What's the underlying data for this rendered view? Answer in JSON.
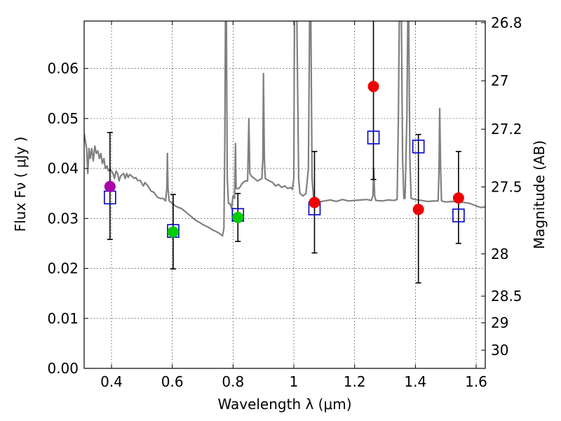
{
  "chart_data": {
    "type": "scatter",
    "title": "",
    "xlabel": "Wavelength  λ (μm)",
    "ylabel": "Flux  Fν  ( μJy )",
    "y2label": "Magnitude (AB)",
    "xlim": [
      0.31,
      1.63
    ],
    "ylim": [
      0.0,
      0.0695
    ],
    "grid": true,
    "colors": {
      "spectrum": "#808080",
      "model": "#0000cc",
      "errorbar": "#000000",
      "frame": "#000000"
    },
    "x_ticks": [
      {
        "value": 0.4,
        "label": "0.4"
      },
      {
        "value": 0.6,
        "label": "0.6"
      },
      {
        "value": 0.8,
        "label": "0.8"
      },
      {
        "value": 1.0,
        "label": "1"
      },
      {
        "value": 1.2,
        "label": "1.2"
      },
      {
        "value": 1.4,
        "label": "1.4"
      },
      {
        "value": 1.6,
        "label": "1.6"
      }
    ],
    "y_ticks": [
      {
        "value": 0.0,
        "label": "0.00"
      },
      {
        "value": 0.01,
        "label": "0.01"
      },
      {
        "value": 0.02,
        "label": "0.02"
      },
      {
        "value": 0.03,
        "label": "0.03"
      },
      {
        "value": 0.04,
        "label": "0.04"
      },
      {
        "value": 0.05,
        "label": "0.05"
      },
      {
        "value": 0.06,
        "label": "0.06"
      }
    ],
    "y2_ticks": [
      {
        "mag": 26.8,
        "label": "26.8"
      },
      {
        "mag": 27.0,
        "label": "27"
      },
      {
        "mag": 27.2,
        "label": "27.2"
      },
      {
        "mag": 27.5,
        "label": "27.5"
      },
      {
        "mag": 28.0,
        "label": "28"
      },
      {
        "mag": 28.5,
        "label": "28.5"
      },
      {
        "mag": 29.0,
        "label": "29"
      },
      {
        "mag": 30.0,
        "label": "30"
      }
    ],
    "observed": [
      {
        "x": 0.395,
        "y": 0.0364,
        "yerr_low": 0.0258,
        "yerr_high": 0.0472,
        "color": "#aa00aa"
      },
      {
        "x": 0.603,
        "y": 0.0273,
        "yerr_low": 0.0199,
        "yerr_high": 0.0348,
        "color": "#00cc00"
      },
      {
        "x": 0.816,
        "y": 0.0302,
        "yerr_low": 0.0254,
        "yerr_high": 0.035,
        "color": "#00cc00"
      },
      {
        "x": 1.068,
        "y": 0.0332,
        "yerr_low": 0.0231,
        "yerr_high": 0.0434,
        "color": "#ee0000"
      },
      {
        "x": 1.262,
        "y": 0.0564,
        "yerr_low": 0.0378,
        "yerr_high": 0.07,
        "color": "#ee0000"
      },
      {
        "x": 1.41,
        "y": 0.0318,
        "yerr_low": 0.0171,
        "yerr_high": 0.0468,
        "color": "#ee0000"
      },
      {
        "x": 1.542,
        "y": 0.0341,
        "yerr_low": 0.025,
        "yerr_high": 0.0434,
        "color": "#ee0000"
      }
    ],
    "model_photometry": [
      {
        "x": 0.395,
        "y": 0.0342
      },
      {
        "x": 0.603,
        "y": 0.0275
      },
      {
        "x": 0.816,
        "y": 0.0307
      },
      {
        "x": 1.068,
        "y": 0.032
      },
      {
        "x": 1.262,
        "y": 0.0462
      },
      {
        "x": 1.41,
        "y": 0.0444
      },
      {
        "x": 1.542,
        "y": 0.0306
      }
    ],
    "spectrum": [
      [
        0.31,
        0.047
      ],
      [
        0.318,
        0.044
      ],
      [
        0.322,
        0.039
      ],
      [
        0.326,
        0.044
      ],
      [
        0.33,
        0.042
      ],
      [
        0.335,
        0.044
      ],
      [
        0.34,
        0.0415
      ],
      [
        0.345,
        0.0445
      ],
      [
        0.35,
        0.043
      ],
      [
        0.355,
        0.0435
      ],
      [
        0.36,
        0.042
      ],
      [
        0.365,
        0.043
      ],
      [
        0.37,
        0.041
      ],
      [
        0.375,
        0.042
      ],
      [
        0.38,
        0.04
      ],
      [
        0.385,
        0.0405
      ],
      [
        0.39,
        0.0395
      ],
      [
        0.395,
        0.04
      ],
      [
        0.4,
        0.0395
      ],
      [
        0.405,
        0.039
      ],
      [
        0.41,
        0.038
      ],
      [
        0.415,
        0.0395
      ],
      [
        0.42,
        0.039
      ],
      [
        0.425,
        0.0375
      ],
      [
        0.43,
        0.0385
      ],
      [
        0.44,
        0.039
      ],
      [
        0.445,
        0.038
      ],
      [
        0.45,
        0.039
      ],
      [
        0.455,
        0.0382
      ],
      [
        0.46,
        0.0388
      ],
      [
        0.47,
        0.0383
      ],
      [
        0.475,
        0.038
      ],
      [
        0.48,
        0.0382
      ],
      [
        0.486,
        0.0376
      ],
      [
        0.495,
        0.0376
      ],
      [
        0.5,
        0.037
      ],
      [
        0.505,
        0.0365
      ],
      [
        0.51,
        0.0372
      ],
      [
        0.52,
        0.0365
      ],
      [
        0.53,
        0.0355
      ],
      [
        0.54,
        0.0352
      ],
      [
        0.55,
        0.0343
      ],
      [
        0.56,
        0.034
      ],
      [
        0.57,
        0.034
      ],
      [
        0.578,
        0.0335
      ],
      [
        0.582,
        0.036
      ],
      [
        0.584,
        0.043
      ],
      [
        0.586,
        0.036
      ],
      [
        0.59,
        0.0335
      ],
      [
        0.6,
        0.033
      ],
      [
        0.61,
        0.0325
      ],
      [
        0.62,
        0.0322
      ],
      [
        0.63,
        0.032
      ],
      [
        0.64,
        0.0315
      ],
      [
        0.65,
        0.031
      ],
      [
        0.66,
        0.0305
      ],
      [
        0.67,
        0.03
      ],
      [
        0.68,
        0.0295
      ],
      [
        0.69,
        0.0292
      ],
      [
        0.7,
        0.0288
      ],
      [
        0.71,
        0.0285
      ],
      [
        0.72,
        0.0282
      ],
      [
        0.73,
        0.0278
      ],
      [
        0.74,
        0.0275
      ],
      [
        0.75,
        0.0272
      ],
      [
        0.76,
        0.0268
      ],
      [
        0.765,
        0.0265
      ],
      [
        0.77,
        0.028
      ],
      [
        0.773,
        0.045
      ],
      [
        0.775,
        0.07
      ],
      [
        0.778,
        0.07
      ],
      [
        0.781,
        0.038
      ],
      [
        0.785,
        0.033
      ],
      [
        0.79,
        0.033
      ],
      [
        0.795,
        0.032
      ],
      [
        0.8,
        0.0345
      ],
      [
        0.805,
        0.034
      ],
      [
        0.808,
        0.045
      ],
      [
        0.81,
        0.036
      ],
      [
        0.815,
        0.036
      ],
      [
        0.82,
        0.036
      ],
      [
        0.83,
        0.037
      ],
      [
        0.84,
        0.0375
      ],
      [
        0.848,
        0.0375
      ],
      [
        0.852,
        0.05
      ],
      [
        0.855,
        0.039
      ],
      [
        0.86,
        0.0385
      ],
      [
        0.87,
        0.038
      ],
      [
        0.88,
        0.0375
      ],
      [
        0.89,
        0.0378
      ],
      [
        0.895,
        0.038
      ],
      [
        0.898,
        0.042
      ],
      [
        0.9,
        0.059
      ],
      [
        0.903,
        0.042
      ],
      [
        0.906,
        0.038
      ],
      [
        0.92,
        0.0375
      ],
      [
        0.93,
        0.0372
      ],
      [
        0.94,
        0.0365
      ],
      [
        0.95,
        0.0368
      ],
      [
        0.96,
        0.0362
      ],
      [
        0.97,
        0.0365
      ],
      [
        0.98,
        0.036
      ],
      [
        0.99,
        0.0362
      ],
      [
        0.995,
        0.0358
      ],
      [
        1.0,
        0.038
      ],
      [
        1.002,
        0.07
      ],
      [
        1.01,
        0.07
      ],
      [
        1.016,
        0.038
      ],
      [
        1.02,
        0.035
      ],
      [
        1.03,
        0.0345
      ],
      [
        1.04,
        0.035
      ],
      [
        1.048,
        0.04
      ],
      [
        1.052,
        0.07
      ],
      [
        1.056,
        0.07
      ],
      [
        1.06,
        0.038
      ],
      [
        1.065,
        0.034
      ],
      [
        1.07,
        0.0335
      ],
      [
        1.08,
        0.0333
      ],
      [
        1.1,
        0.0335
      ],
      [
        1.12,
        0.0337
      ],
      [
        1.14,
        0.0334
      ],
      [
        1.16,
        0.0338
      ],
      [
        1.18,
        0.0335
      ],
      [
        1.2,
        0.0336
      ],
      [
        1.22,
        0.0337
      ],
      [
        1.24,
        0.0338
      ],
      [
        1.255,
        0.0336
      ],
      [
        1.26,
        0.0345
      ],
      [
        1.263,
        0.04
      ],
      [
        1.266,
        0.0345
      ],
      [
        1.27,
        0.0336
      ],
      [
        1.29,
        0.0335
      ],
      [
        1.31,
        0.0337
      ],
      [
        1.33,
        0.0336
      ],
      [
        1.34,
        0.0338
      ],
      [
        1.344,
        0.05
      ],
      [
        1.347,
        0.07
      ],
      [
        1.354,
        0.07
      ],
      [
        1.358,
        0.042
      ],
      [
        1.362,
        0.034
      ],
      [
        1.366,
        0.034
      ],
      [
        1.372,
        0.05
      ],
      [
        1.375,
        0.07
      ],
      [
        1.378,
        0.07
      ],
      [
        1.382,
        0.042
      ],
      [
        1.386,
        0.034
      ],
      [
        1.4,
        0.0338
      ],
      [
        1.42,
        0.0336
      ],
      [
        1.44,
        0.0334
      ],
      [
        1.46,
        0.0335
      ],
      [
        1.475,
        0.0335
      ],
      [
        1.478,
        0.04
      ],
      [
        1.48,
        0.052
      ],
      [
        1.483,
        0.04
      ],
      [
        1.486,
        0.0335
      ],
      [
        1.5,
        0.0333
      ],
      [
        1.52,
        0.0334
      ],
      [
        1.54,
        0.0333
      ],
      [
        1.56,
        0.0332
      ],
      [
        1.58,
        0.033
      ],
      [
        1.6,
        0.0325
      ],
      [
        1.615,
        0.0322
      ],
      [
        1.63,
        0.0323
      ]
    ]
  }
}
